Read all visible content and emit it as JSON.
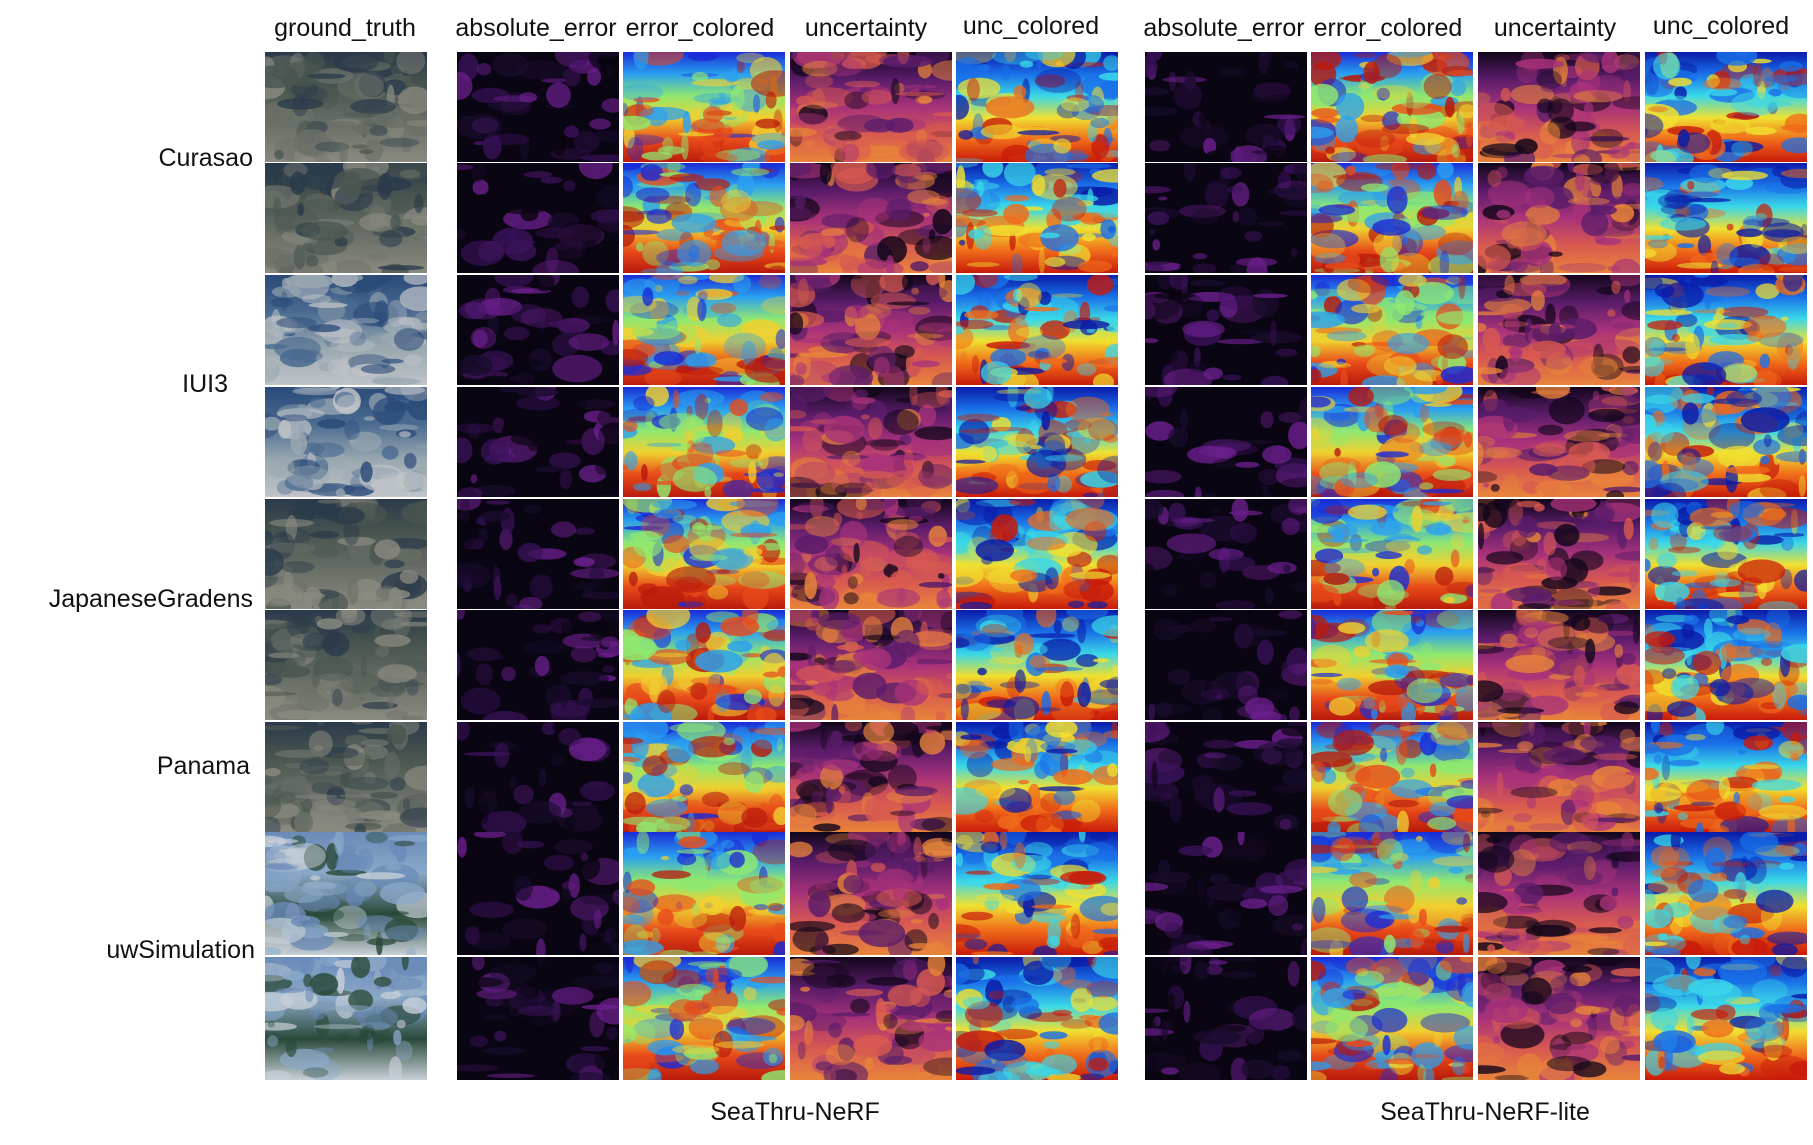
{
  "column_headers": {
    "gt": "ground_truth",
    "nerf": [
      "absolute_error",
      "error_colored",
      "uncertainty",
      "unc_colored"
    ],
    "lite": [
      "absolute_error",
      "error_colored",
      "uncertainty",
      "unc_colored"
    ]
  },
  "row_groups": [
    "Curasao",
    "IUI3",
    "JapaneseGradens",
    "Panama",
    "uwSimulation"
  ],
  "group_captions": {
    "nerf": "SeaThru-NeRF",
    "lite": "SeaThru-NeRF-lite"
  },
  "colors": {
    "absolute_error": [
      "#0a0512",
      "#1a0c2e",
      "#3a125a",
      "#6a1f8c"
    ],
    "error_colored": [
      "#1a2bd6",
      "#2aa0f0",
      "#8fe870",
      "#f0d030",
      "#e84a1a",
      "#b81a0c"
    ],
    "uncertainty": [
      "#12061a",
      "#5a1c6a",
      "#a8327a",
      "#d85a50",
      "#e8843a"
    ],
    "unc_colored": [
      "#0a1aa8",
      "#1a70e8",
      "#3ad8e8",
      "#f0e030",
      "#f06a1a",
      "#c81a0a"
    ],
    "ground_truth_reef": [
      "#2a3a4a",
      "#4a5650",
      "#6a7068",
      "#8a8a80"
    ],
    "ground_truth_iui3": [
      "#2a4a78",
      "#4a6a90",
      "#9aa8b0",
      "#c0c4c8"
    ],
    "ground_truth_sim": [
      "#6a8ab8",
      "#8aa8c8",
      "#2a4a3a",
      "#c8d0d8"
    ]
  }
}
